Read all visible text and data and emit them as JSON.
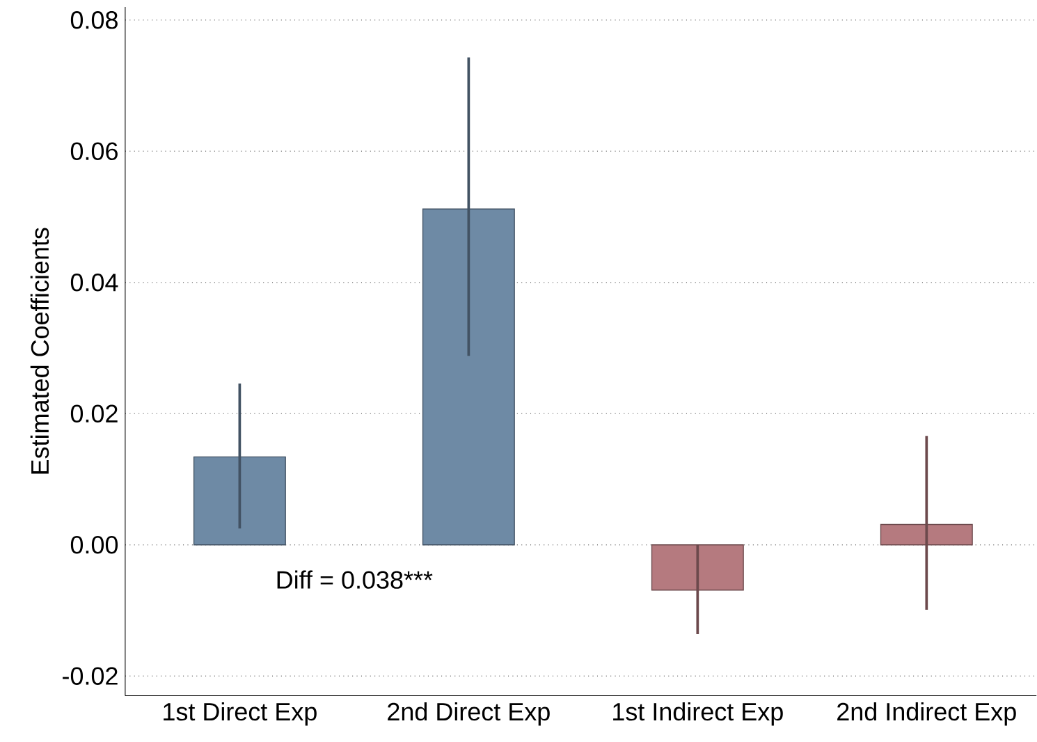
{
  "chart_data": {
    "type": "bar",
    "ylabel": "Estimated Coefficients",
    "categories": [
      "1st Direct Exp",
      "2nd Direct Exp",
      "1st Indirect Exp",
      "2nd Indirect Exp"
    ],
    "values": [
      0.0134,
      0.0512,
      -0.0069,
      0.0031
    ],
    "errors": [
      [
        0.0025,
        0.0246
      ],
      [
        0.0288,
        0.0743
      ],
      [
        -0.0136,
        0.0
      ],
      [
        -0.0099,
        0.0166
      ]
    ],
    "colors": [
      "#6e8aa5",
      "#6e8aa5",
      "#b57a7f",
      "#b57a7f"
    ],
    "ylim": [
      -0.023,
      0.082
    ],
    "yticks": [
      {
        "value": -0.02,
        "label": "-0.02"
      },
      {
        "value": 0.0,
        "label": "0.00"
      },
      {
        "value": 0.02,
        "label": "0.02"
      },
      {
        "value": 0.04,
        "label": "0.04"
      },
      {
        "value": 0.06,
        "label": "0.06"
      },
      {
        "value": 0.08,
        "label": "0.08"
      }
    ],
    "grid": "y",
    "annotations": [
      "Diff = 0.038***"
    ]
  }
}
